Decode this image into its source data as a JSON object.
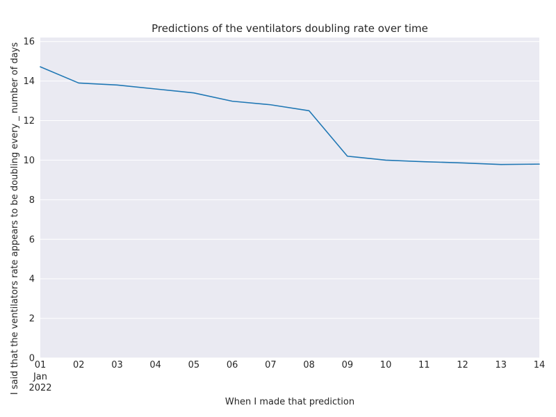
{
  "chart_data": {
    "type": "line",
    "title": "Predictions of the ventilators doubling rate over time",
    "xlabel": "When I made that prediction",
    "ylabel": "I said that the ventilators rate appears to be doubling every _ number of days",
    "x": [
      "2022-01-01",
      "2022-01-02",
      "2022-01-03",
      "2022-01-04",
      "2022-01-05",
      "2022-01-06",
      "2022-01-07",
      "2022-01-08",
      "2022-01-09",
      "2022-01-10",
      "2022-01-11",
      "2022-01-12",
      "2022-01-13",
      "2022-01-14"
    ],
    "x_tick_labels": [
      "01",
      "02",
      "03",
      "04",
      "05",
      "06",
      "07",
      "08",
      "09",
      "10",
      "11",
      "12",
      "13",
      "14"
    ],
    "x_tick_sublabels": [
      "Jan",
      "2022"
    ],
    "series": [
      {
        "values": [
          14.72,
          13.9,
          13.8,
          13.6,
          13.4,
          12.98,
          12.8,
          12.5,
          10.2,
          10.0,
          9.92,
          9.86,
          9.78,
          9.8
        ],
        "color": "#1f77b4"
      }
    ],
    "ylim": [
      0,
      16.2
    ],
    "y_ticks": [
      0,
      2,
      4,
      6,
      8,
      10,
      12,
      14,
      16
    ],
    "grid": true,
    "background_color": "#eaeaf2",
    "grid_color": "#ffffff",
    "legend": "none"
  }
}
